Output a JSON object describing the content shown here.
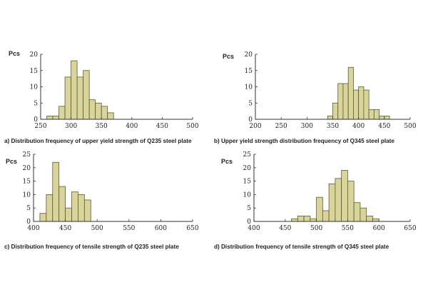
{
  "chart_data": [
    {
      "type": "bar",
      "title": "",
      "caption": "a) Distribution frequency of upper yield strength of Q235 steel plate",
      "ylabel": "Pcs",
      "xlabel": "",
      "xlim": [
        250,
        500
      ],
      "ylim": [
        0,
        20
      ],
      "xticks": [
        250,
        300,
        350,
        400,
        450,
        500
      ],
      "yticks": [
        0,
        5,
        10,
        15,
        20
      ],
      "bin_width": 10,
      "bins": [
        {
          "x": 260,
          "value": 1
        },
        {
          "x": 270,
          "value": 1
        },
        {
          "x": 280,
          "value": 4
        },
        {
          "x": 290,
          "value": 13
        },
        {
          "x": 300,
          "value": 18
        },
        {
          "x": 310,
          "value": 13
        },
        {
          "x": 320,
          "value": 15
        },
        {
          "x": 330,
          "value": 6
        },
        {
          "x": 340,
          "value": 5
        },
        {
          "x": 350,
          "value": 4
        },
        {
          "x": 360,
          "value": 2
        }
      ]
    },
    {
      "type": "bar",
      "title": "",
      "caption": "b) Upper yield strength distribution frequency of Q345 steel plate",
      "ylabel": "Pcs",
      "xlabel": "",
      "xlim": [
        200,
        500
      ],
      "ylim": [
        0,
        20
      ],
      "xticks": [
        200,
        250,
        300,
        350,
        400,
        450,
        500
      ],
      "yticks": [
        0,
        5,
        10,
        15,
        20
      ],
      "bin_width": 10,
      "bins": [
        {
          "x": 340,
          "value": 1
        },
        {
          "x": 350,
          "value": 5
        },
        {
          "x": 360,
          "value": 11
        },
        {
          "x": 370,
          "value": 11
        },
        {
          "x": 380,
          "value": 16
        },
        {
          "x": 390,
          "value": 9
        },
        {
          "x": 400,
          "value": 10
        },
        {
          "x": 410,
          "value": 9
        },
        {
          "x": 420,
          "value": 3
        },
        {
          "x": 430,
          "value": 3
        },
        {
          "x": 440,
          "value": 1
        },
        {
          "x": 450,
          "value": 1
        }
      ]
    },
    {
      "type": "bar",
      "title": "",
      "caption": "c) Distribution frequency of tensile strength of Q235 steel plate",
      "ylabel": "Pcs",
      "xlabel": "",
      "xlim": [
        400,
        650
      ],
      "ylim": [
        0,
        25
      ],
      "xticks": [
        400,
        450,
        500,
        550,
        600,
        650
      ],
      "yticks": [
        0,
        5,
        10,
        15,
        20,
        25
      ],
      "bin_width": 10,
      "bins": [
        {
          "x": 410,
          "value": 3
        },
        {
          "x": 420,
          "value": 10
        },
        {
          "x": 430,
          "value": 22
        },
        {
          "x": 440,
          "value": 13
        },
        {
          "x": 450,
          "value": 5
        },
        {
          "x": 460,
          "value": 11
        },
        {
          "x": 470,
          "value": 10
        },
        {
          "x": 480,
          "value": 8
        }
      ]
    },
    {
      "type": "bar",
      "title": "",
      "caption": "d) Distribution frequency of tensile strength of Q345 steel plate",
      "ylabel": "Pcs",
      "xlabel": "",
      "xlim": [
        400,
        650
      ],
      "ylim": [
        0,
        25
      ],
      "xticks": [
        400,
        450,
        500,
        550,
        600,
        650
      ],
      "yticks": [
        0,
        5,
        10,
        15,
        20,
        25
      ],
      "bin_width": 10,
      "bins": [
        {
          "x": 460,
          "value": 1
        },
        {
          "x": 470,
          "value": 2
        },
        {
          "x": 480,
          "value": 2
        },
        {
          "x": 490,
          "value": 1
        },
        {
          "x": 500,
          "value": 9
        },
        {
          "x": 510,
          "value": 4
        },
        {
          "x": 520,
          "value": 14
        },
        {
          "x": 530,
          "value": 16
        },
        {
          "x": 540,
          "value": 19
        },
        {
          "x": 550,
          "value": 15
        },
        {
          "x": 560,
          "value": 7
        },
        {
          "x": 570,
          "value": 5
        },
        {
          "x": 580,
          "value": 2
        },
        {
          "x": 590,
          "value": 1
        }
      ]
    }
  ]
}
